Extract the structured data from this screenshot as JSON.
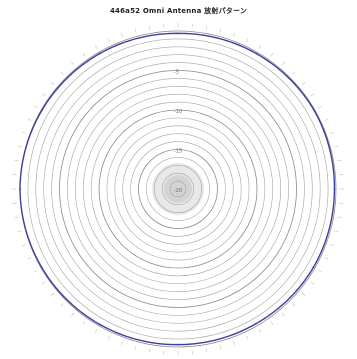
{
  "chart_data": {
    "type": "polar",
    "title": "446a52 Omni Antenna 放射パターン",
    "radial_unit": "dB",
    "radial_range": [
      -20,
      0
    ],
    "radial_ring_step": 1,
    "radial_tick_labels": [
      "-5",
      "-10",
      "-15",
      "-20"
    ],
    "angular_range_deg": [
      0,
      360
    ],
    "angular_tick_step_deg": 5,
    "grid": true,
    "series": [
      {
        "color": "#3b3f9e",
        "points": [
          {
            "angle": 0,
            "value": -0.3
          },
          {
            "angle": 30,
            "value": -0.2
          },
          {
            "angle": 60,
            "value": -0.1
          },
          {
            "angle": 90,
            "value": -0.2
          },
          {
            "angle": 120,
            "value": -0.2
          },
          {
            "angle": 150,
            "value": -0.3
          },
          {
            "angle": 180,
            "value": -0.3
          },
          {
            "angle": 210,
            "value": -0.2
          },
          {
            "angle": 240,
            "value": -0.1
          },
          {
            "angle": 270,
            "value": 0.0
          },
          {
            "angle": 300,
            "value": -0.1
          },
          {
            "angle": 330,
            "value": -0.2
          }
        ]
      }
    ]
  }
}
